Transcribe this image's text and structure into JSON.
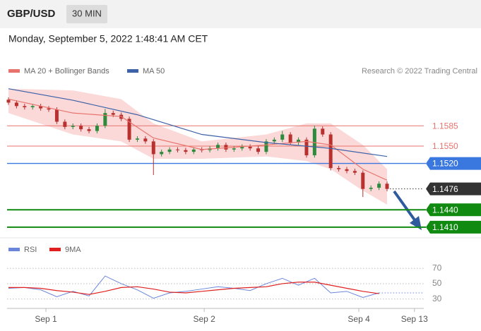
{
  "header": {
    "symbol": "GBP/USD",
    "timeframe": "30 MIN",
    "datetime": "Monday, September 5, 2022 1:48:41 AM CET"
  },
  "chart_data": [
    {
      "type": "candlestick",
      "credit": "Research © 2022 Trading Central",
      "xlim": [
        0,
        47
      ],
      "ylim": [
        1.1394,
        1.1662
      ],
      "up_color": "#2e8b3e",
      "down_color": "#b8312f",
      "open": [
        1.163,
        1.1625,
        1.1619,
        1.1617,
        1.1619,
        1.1615,
        1.1613,
        1.1592,
        1.1583,
        1.1585,
        1.1579,
        1.1576,
        1.1585,
        1.1607,
        1.1604,
        1.1597,
        1.1561,
        1.1563,
        1.1558,
        1.1536,
        1.154,
        1.1544,
        1.1543,
        1.154,
        1.1544,
        1.1543,
        1.1546,
        1.1552,
        1.1544,
        1.1546,
        1.1549,
        1.1546,
        1.154,
        1.1558,
        1.1561,
        1.157,
        1.1556,
        1.1561,
        1.1534,
        1.158,
        1.157,
        1.1512,
        1.151,
        1.1507,
        1.1504,
        1.1476,
        1.1478,
        1.1485
      ],
      "high": [
        1.1634,
        1.1629,
        1.1623,
        1.1623,
        1.1623,
        1.1619,
        1.1617,
        1.1596,
        1.1589,
        1.1589,
        1.1583,
        1.1589,
        1.1614,
        1.1611,
        1.1608,
        1.1601,
        1.1567,
        1.1567,
        1.1562,
        1.1544,
        1.1548,
        1.1548,
        1.1547,
        1.1548,
        1.1548,
        1.155,
        1.1556,
        1.1556,
        1.155,
        1.1553,
        1.1553,
        1.155,
        1.1562,
        1.1565,
        1.1576,
        1.1574,
        1.1565,
        1.1565,
        1.1585,
        1.1584,
        1.1574,
        1.1516,
        1.1514,
        1.1511,
        1.1508,
        1.1482,
        1.1489,
        1.1489
      ],
      "low": [
        1.1621,
        1.1615,
        1.1613,
        1.1613,
        1.1611,
        1.1609,
        1.1588,
        1.1579,
        1.1579,
        1.1575,
        1.1572,
        1.1572,
        1.1581,
        1.16,
        1.1593,
        1.1557,
        1.1557,
        1.1554,
        1.15,
        1.1532,
        1.1536,
        1.1539,
        1.1536,
        1.1536,
        1.1539,
        1.1539,
        1.1542,
        1.154,
        1.154,
        1.1542,
        1.1542,
        1.1536,
        1.1536,
        1.1554,
        1.1557,
        1.1552,
        1.1552,
        1.153,
        1.153,
        1.1566,
        1.1508,
        1.1506,
        1.1503,
        1.15,
        1.1462,
        1.1472,
        1.1474,
        1.1472
      ],
      "close": [
        1.1625,
        1.1619,
        1.1617,
        1.1619,
        1.1615,
        1.1613,
        1.1592,
        1.1583,
        1.1585,
        1.1579,
        1.1576,
        1.1585,
        1.1607,
        1.1604,
        1.1597,
        1.1561,
        1.1563,
        1.1558,
        1.1536,
        1.154,
        1.1544,
        1.1543,
        1.154,
        1.1544,
        1.1543,
        1.1546,
        1.1552,
        1.1544,
        1.1546,
        1.1549,
        1.1546,
        1.154,
        1.1558,
        1.1561,
        1.157,
        1.1556,
        1.1561,
        1.1534,
        1.158,
        1.157,
        1.1512,
        1.151,
        1.1507,
        1.1504,
        1.1476,
        1.1478,
        1.1485,
        1.1476
      ],
      "series": [
        {
          "name": "MA 20 + Bollinger Bands",
          "color": "#e8736d",
          "band_color": "#fbd9d8",
          "x": [
            0,
            8,
            14,
            18,
            24,
            32,
            37,
            40,
            44,
            47
          ],
          "values": [
            1.1631,
            1.1607,
            1.1601,
            1.1564,
            1.1544,
            1.1552,
            1.1558,
            1.1552,
            1.151,
            1.1491
          ],
          "upper": [
            1.1649,
            1.1646,
            1.1631,
            1.1589,
            1.1558,
            1.157,
            1.1589,
            1.1589,
            1.1552,
            1.151
          ],
          "lower": [
            1.1607,
            1.157,
            1.1558,
            1.1528,
            1.1528,
            1.1532,
            1.1524,
            1.151,
            1.1473,
            1.1449
          ]
        },
        {
          "name": "MA 50",
          "color": "#3d62a8",
          "x": [
            0,
            8,
            16,
            24,
            32,
            40,
            47
          ],
          "values": [
            1.1649,
            1.1629,
            1.1604,
            1.157,
            1.1556,
            1.1546,
            1.1532
          ]
        }
      ],
      "levels": [
        {
          "value": 1.1585,
          "label": "1.1585",
          "color": "#e8736d",
          "boxed": false,
          "dotted": false
        },
        {
          "value": 1.155,
          "label": "1.1550",
          "color": "#e8736d",
          "boxed": false,
          "dotted": false
        },
        {
          "value": 1.152,
          "label": "1.1520",
          "color": "#3a78e0",
          "boxed": true,
          "dotted": false
        },
        {
          "value": 1.1476,
          "label": "1.1476",
          "color": "#333333",
          "boxed": true,
          "dotted": true
        },
        {
          "value": 1.144,
          "label": "1.1440",
          "color": "#118a11",
          "boxed": true,
          "dotted": false
        },
        {
          "value": 1.141,
          "label": "1.1410",
          "color": "#118a11",
          "boxed": true,
          "dotted": false
        }
      ]
    },
    {
      "type": "line",
      "xlim": [
        0,
        47
      ],
      "ylim": [
        15,
        84
      ],
      "yticks": [
        70,
        50,
        30
      ],
      "grid": true,
      "xticks": [
        {
          "value": 4.65,
          "label": "Sep 1"
        },
        {
          "value": 24.3,
          "label": "Sep 2"
        },
        {
          "value": 43.5,
          "label": "Sep 4"
        },
        {
          "value": 50.4,
          "label": "Sep 13"
        }
      ],
      "series": [
        {
          "name": "RSI",
          "color": "#6a86db",
          "x": [
            0,
            2,
            4,
            6,
            8,
            10,
            12,
            14,
            16,
            18,
            20,
            22,
            24,
            26,
            28,
            30,
            32,
            34,
            36,
            38,
            40,
            42,
            44,
            46
          ],
          "values": [
            44,
            45,
            42,
            33,
            40,
            34,
            60,
            50,
            42,
            31,
            38,
            40,
            43,
            46,
            44,
            41,
            50,
            57,
            48,
            57,
            38,
            40,
            32,
            38
          ]
        },
        {
          "name": "9MA",
          "color": "#e02020",
          "x": [
            0,
            2,
            4,
            6,
            8,
            10,
            12,
            14,
            16,
            18,
            20,
            22,
            24,
            26,
            28,
            30,
            32,
            34,
            36,
            38,
            40,
            42,
            44,
            46
          ],
          "values": [
            45,
            45,
            44,
            41,
            39,
            36,
            40,
            45,
            46,
            43,
            39,
            38,
            40,
            42,
            44,
            45,
            46,
            50,
            52,
            52,
            48,
            44,
            40,
            37
          ]
        }
      ]
    }
  ]
}
